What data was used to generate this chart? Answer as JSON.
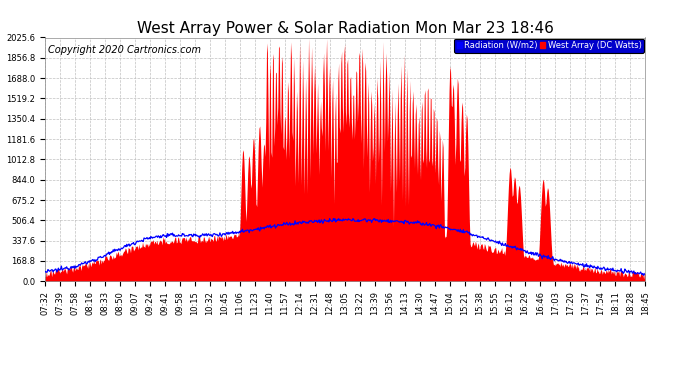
{
  "title": "West Array Power & Solar Radiation Mon Mar 23 18:46",
  "copyright": "Copyright 2020 Cartronics.com",
  "legend_radiation": "Radiation (W/m2)",
  "legend_west": "West Array (DC Watts)",
  "ymin": 0.0,
  "ymax": 2025.6,
  "yticks": [
    0.0,
    168.8,
    337.6,
    506.4,
    675.2,
    844.0,
    1012.8,
    1181.6,
    1350.4,
    1519.2,
    1688.0,
    1856.8,
    2025.6
  ],
  "background_color": "#ffffff",
  "grid_color": "#c0c0c0",
  "red_fill_color": "#ff0000",
  "blue_line_color": "#0000ff",
  "title_fontsize": 11,
  "copyright_fontsize": 7,
  "tick_fontsize": 6,
  "xtick_labels": [
    "07:32",
    "07:39",
    "07:58",
    "08:16",
    "08:33",
    "08:50",
    "09:07",
    "09:24",
    "09:41",
    "09:58",
    "10:15",
    "10:32",
    "10:45",
    "11:06",
    "11:23",
    "11:40",
    "11:57",
    "12:14",
    "12:31",
    "12:48",
    "13:05",
    "13:22",
    "13:39",
    "13:56",
    "14:13",
    "14:30",
    "14:47",
    "15:04",
    "15:21",
    "15:38",
    "15:55",
    "16:12",
    "16:29",
    "16:46",
    "17:03",
    "17:20",
    "17:37",
    "17:54",
    "18:11",
    "18:28",
    "18:45"
  ]
}
